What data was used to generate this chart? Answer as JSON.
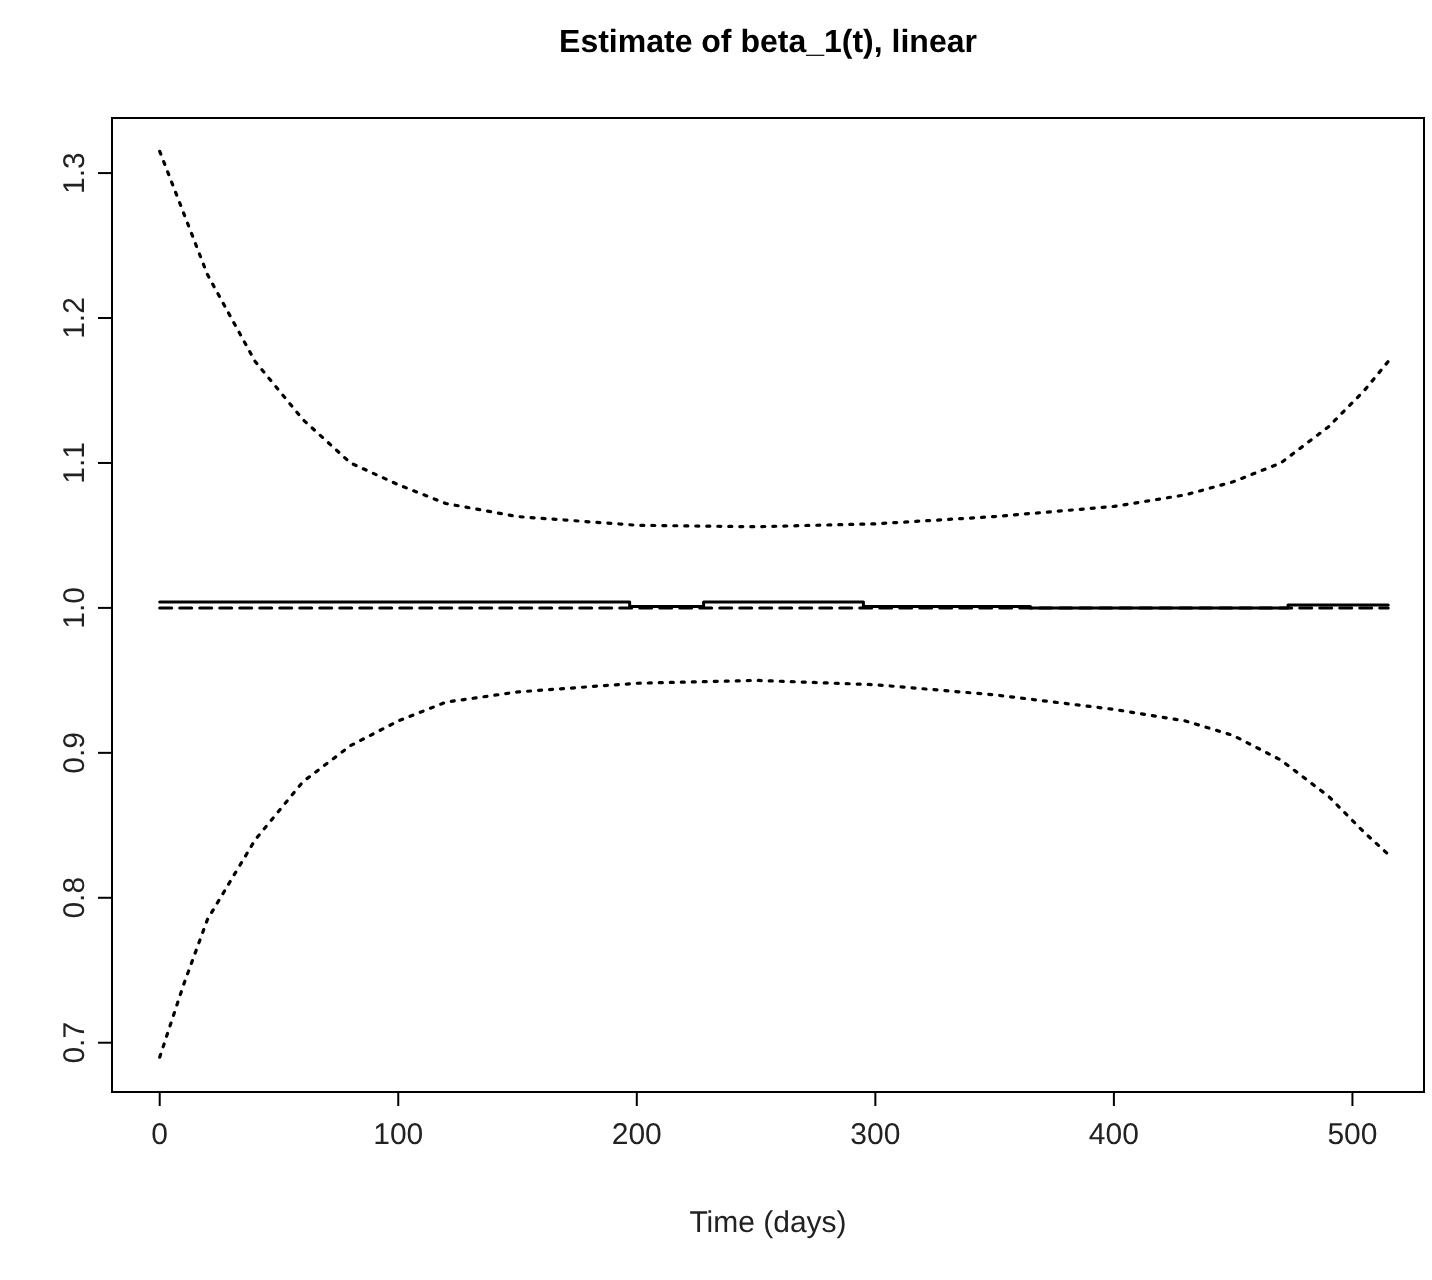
{
  "chart_data": {
    "type": "line",
    "title": "Estimate of beta_1(t), linear",
    "xlabel": "Time (days)",
    "xlim": [
      -20,
      530
    ],
    "ylim": [
      0.666,
      1.338
    ],
    "xticks": [
      0,
      100,
      200,
      300,
      400,
      500
    ],
    "yticks": [
      0.7,
      0.8,
      0.9,
      {
        "value": 1,
        "label": "1.0"
      },
      1.1,
      1.2,
      1.3
    ],
    "grid": false,
    "series": [
      {
        "type": "step",
        "color": "#000000",
        "line_style": "solid",
        "x": [
          0,
          197,
          228,
          295,
          365,
          473,
          515
        ],
        "values": [
          1.004,
          1.001,
          1.004,
          1.001,
          1.0,
          1.002,
          1.002
        ]
      },
      {
        "color": "#000000",
        "line_style": "dashed",
        "x": [
          0,
          515
        ],
        "values": [
          1.0,
          1.0
        ]
      },
      {
        "color": "#000000",
        "line_style": "dotted",
        "x": [
          0,
          20,
          40,
          60,
          80,
          100,
          120,
          150,
          200,
          250,
          300,
          350,
          400,
          430,
          450,
          470,
          490,
          505,
          515
        ],
        "values": [
          1.315,
          1.23,
          1.17,
          1.13,
          1.1,
          1.085,
          1.072,
          1.063,
          1.057,
          1.056,
          1.058,
          1.063,
          1.07,
          1.078,
          1.087,
          1.1,
          1.125,
          1.15,
          1.17
        ]
      },
      {
        "color": "#000000",
        "line_style": "dotted",
        "x": [
          0,
          10,
          20,
          40,
          60,
          80,
          100,
          120,
          150,
          200,
          250,
          300,
          350,
          400,
          430,
          450,
          470,
          490,
          505,
          515
        ],
        "values": [
          0.69,
          0.74,
          0.785,
          0.84,
          0.88,
          0.905,
          0.922,
          0.935,
          0.942,
          0.948,
          0.95,
          0.947,
          0.94,
          0.93,
          0.922,
          0.912,
          0.895,
          0.87,
          0.845,
          0.83
        ]
      }
    ]
  }
}
